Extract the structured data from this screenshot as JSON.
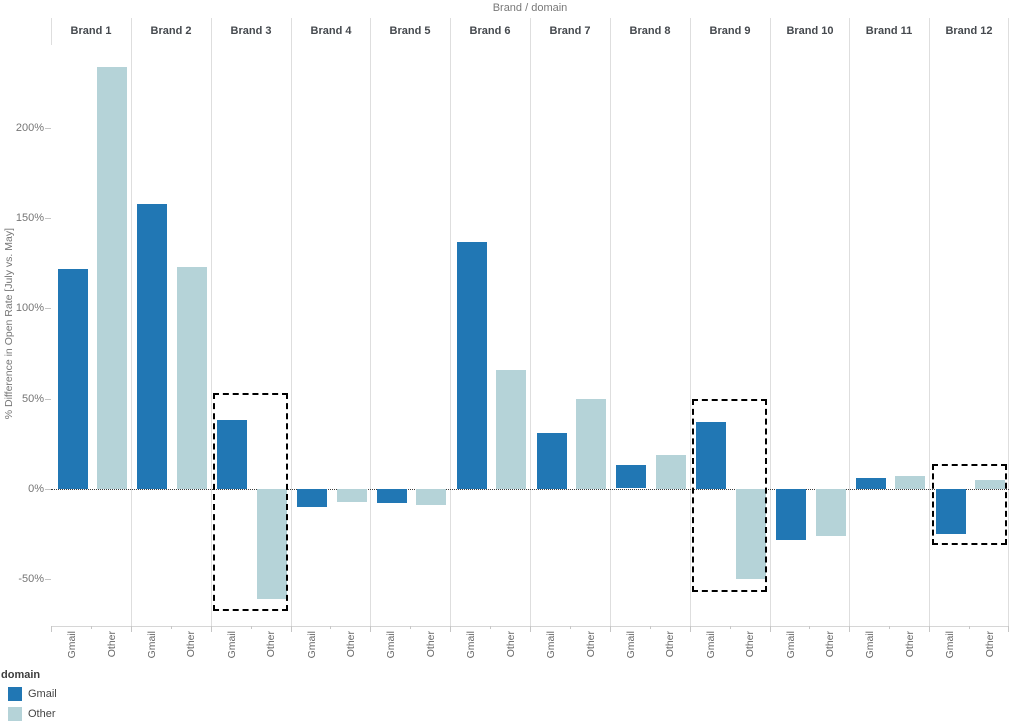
{
  "legend": {
    "title": "domain",
    "items": [
      {
        "label": "Gmail",
        "color": "#2177b4"
      },
      {
        "label": "Other",
        "color": "#b5d3d8"
      }
    ]
  },
  "chart_data": {
    "type": "bar",
    "title": "Brand / domain",
    "xlabel": "",
    "ylabel": "% Difference in Open Rate [July vs. May]",
    "unit": "%",
    "categories": [
      "Brand 1",
      "Brand 2",
      "Brand 3",
      "Brand 4",
      "Brand 5",
      "Brand 6",
      "Brand 7",
      "Brand 8",
      "Brand 9",
      "Brand 10",
      "Brand 11",
      "Brand 12"
    ],
    "subcategories": [
      "Gmail",
      "Other"
    ],
    "series": [
      {
        "name": "Gmail",
        "color": "#2177b4",
        "values": [
          122,
          158,
          38,
          -10,
          -8,
          137,
          31,
          13,
          37,
          -28,
          6,
          -25
        ]
      },
      {
        "name": "Other",
        "color": "#b5d3d8",
        "values": [
          234,
          123,
          -61,
          -7,
          -9,
          66,
          50,
          19,
          -50,
          -26,
          7,
          5
        ]
      }
    ],
    "ylim": [
      -76,
      246
    ],
    "yticks": [
      {
        "value": -50,
        "label": "-50%"
      },
      {
        "value": 0,
        "label": "0%"
      },
      {
        "value": 50,
        "label": "50%"
      },
      {
        "value": 100,
        "label": "100%"
      },
      {
        "value": 150,
        "label": "150%"
      },
      {
        "value": 200,
        "label": "200%"
      }
    ],
    "grid": "zero-line-only",
    "zero_line_style": "dotted",
    "legend_position": "bottom-left",
    "highlights": [
      {
        "category": "Brand 3",
        "category_index": 2,
        "top_value": 53,
        "bottom_value": -68
      },
      {
        "category": "Brand 9",
        "category_index": 8,
        "top_value": 50,
        "bottom_value": -57
      },
      {
        "category": "Brand 12",
        "category_index": 11,
        "top_value": 14,
        "bottom_value": -31
      }
    ]
  }
}
